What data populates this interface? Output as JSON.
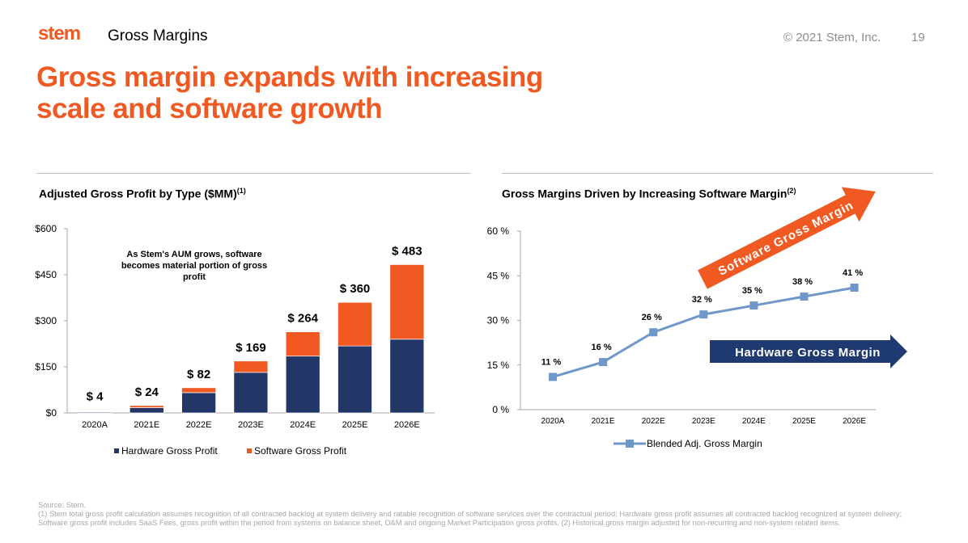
{
  "header": {
    "logo": "stem",
    "section": "Gross Margins",
    "copyright": "© 2021 Stem, Inc.",
    "page_number": "19"
  },
  "title_line1": "Gross margin expands with increasing",
  "title_line2": "scale and software growth",
  "colors": {
    "accent": "#f05a22",
    "hardware": "#233668",
    "software": "#f05a22",
    "line": "#6f97c9",
    "hw_arrow": "#1f3a70"
  },
  "chart_data": [
    {
      "type": "bar",
      "stacked": true,
      "title": "Adjusted Gross Profit by Type ($MM)",
      "title_sup": "(1)",
      "categories": [
        "2020A",
        "2021E",
        "2022E",
        "2023E",
        "2024E",
        "2025E",
        "2026E"
      ],
      "series": [
        {
          "name": "Hardware Gross Profit",
          "values": [
            3,
            17,
            66,
            132,
            185,
            218,
            240
          ]
        },
        {
          "name": "Software Gross Profit",
          "values": [
            1,
            7,
            16,
            37,
            79,
            142,
            243
          ]
        }
      ],
      "totals": [
        "$ 4",
        "$ 24",
        "$ 82",
        "$ 169",
        "$ 264",
        "$ 360",
        "$ 483"
      ],
      "yticks": [
        "$0",
        "$150",
        "$300",
        "$450",
        "$600"
      ],
      "ylim": [
        0,
        600
      ],
      "annotation": [
        "As Stem's AUM grows, software",
        "becomes material portion of gross",
        "profit"
      ],
      "legend": "bottom"
    },
    {
      "type": "line",
      "title": "Gross Margins Driven by Increasing Software Margin",
      "title_sup": "(2)",
      "categories": [
        "2020A",
        "2021E",
        "2022E",
        "2023E",
        "2024E",
        "2025E",
        "2026E"
      ],
      "series": [
        {
          "name": "Blended Adj. Gross Margin",
          "values": [
            11,
            16,
            26,
            32,
            35,
            38,
            41
          ]
        }
      ],
      "labels": [
        "11 %",
        "16 %",
        "26 %",
        "32 %",
        "35 %",
        "38 %",
        "41 %"
      ],
      "yticks": [
        "0 %",
        "15 %",
        "30 %",
        "45 %",
        "60 %"
      ],
      "ylim": [
        0,
        60
      ],
      "arrows": [
        "Software Gross Margin",
        "Hardware Gross Margin"
      ],
      "legend": "bottom"
    }
  ],
  "footnotes": {
    "source": "Source: Stem.",
    "note": "(1) Stem total gross profit calculation assumes recognition of all contracted backlog at system delivery and ratable recognition of software services over the contractual period; Hardware gross profit assumes all contracted backlog recognized at system delivery; Software gross profit includes SaaS Fees, gross profit within the period from systems on balance sheet, O&M and ongoing Market Participation gross profits. (2) Historical gross margin adjusted for non-recurring and non-system related items."
  }
}
